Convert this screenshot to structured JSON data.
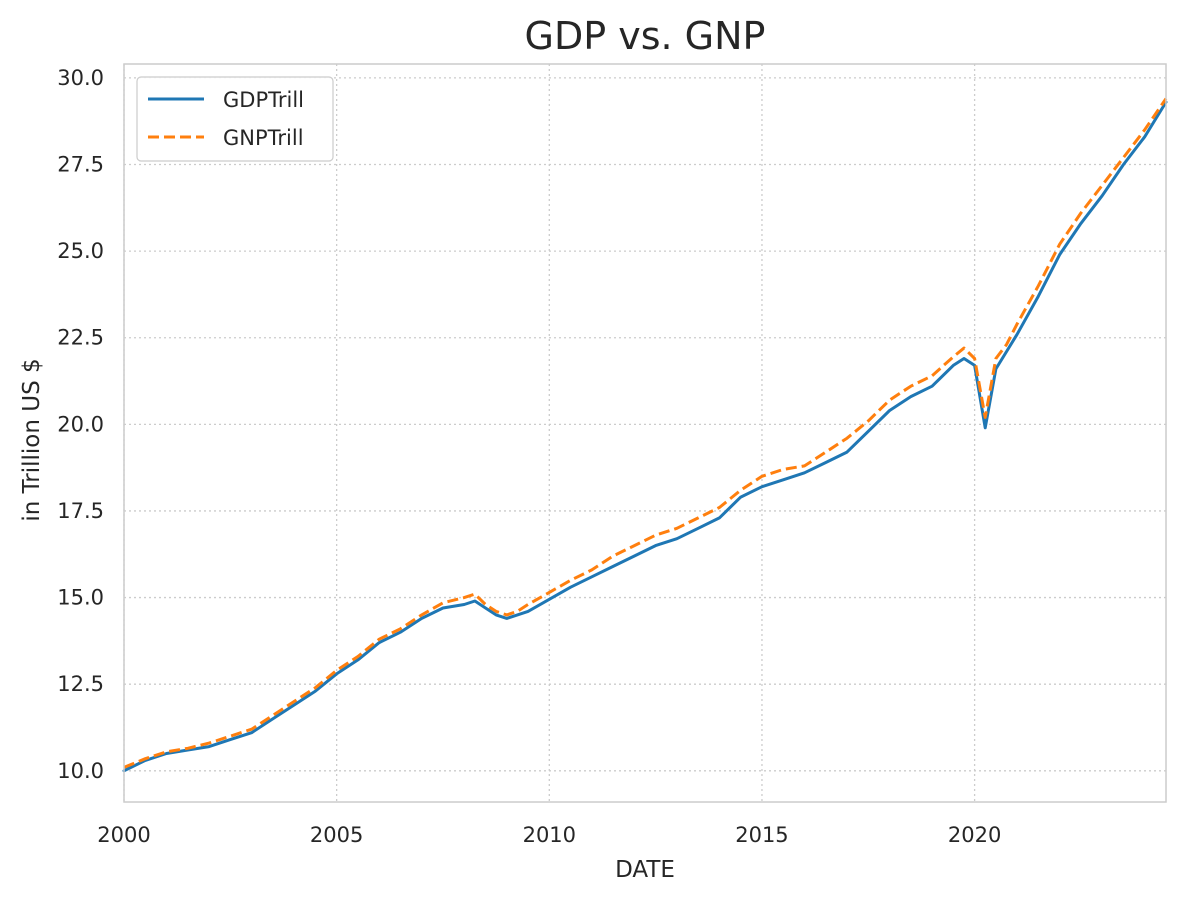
{
  "chart_data": {
    "type": "line",
    "title": "GDP vs. GNP",
    "xlabel": "DATE",
    "ylabel": "in Trillion US $",
    "xlim": [
      "2000-01-01",
      "2024-07-01"
    ],
    "ylim": [
      9.1,
      30.4
    ],
    "xticks": [
      "2000",
      "2005",
      "2010",
      "2015",
      "2020"
    ],
    "yticks": [
      "10.0",
      "12.5",
      "15.0",
      "17.5",
      "20.0",
      "22.5",
      "25.0",
      "27.5",
      "30.0"
    ],
    "grid": true,
    "legend": "top-left",
    "x": [
      "2000-01-01",
      "2000-07-01",
      "2001-01-01",
      "2001-07-01",
      "2002-01-01",
      "2002-07-01",
      "2003-01-01",
      "2003-07-01",
      "2004-01-01",
      "2004-07-01",
      "2005-01-01",
      "2005-07-01",
      "2006-01-01",
      "2006-07-01",
      "2007-01-01",
      "2007-07-01",
      "2008-01-01",
      "2008-04-01",
      "2008-07-01",
      "2008-10-01",
      "2009-01-01",
      "2009-04-01",
      "2009-07-01",
      "2010-01-01",
      "2010-07-01",
      "2011-01-01",
      "2011-07-01",
      "2012-01-01",
      "2012-07-01",
      "2013-01-01",
      "2013-07-01",
      "2014-01-01",
      "2014-07-01",
      "2015-01-01",
      "2015-07-01",
      "2016-01-01",
      "2016-07-01",
      "2017-01-01",
      "2017-07-01",
      "2018-01-01",
      "2018-07-01",
      "2019-01-01",
      "2019-07-01",
      "2019-10-01",
      "2020-01-01",
      "2020-04-01",
      "2020-07-01",
      "2020-10-01",
      "2021-01-01",
      "2021-07-01",
      "2022-01-01",
      "2022-07-01",
      "2023-01-01",
      "2023-07-01",
      "2024-01-01",
      "2024-07-01"
    ],
    "series": [
      {
        "name": "GDPTrill",
        "color": "#1f77b4",
        "style": "solid",
        "values": [
          10.0,
          10.3,
          10.5,
          10.6,
          10.7,
          10.9,
          11.1,
          11.5,
          11.9,
          12.3,
          12.8,
          13.2,
          13.7,
          14.0,
          14.4,
          14.7,
          14.8,
          14.9,
          14.7,
          14.5,
          14.4,
          14.5,
          14.6,
          14.95,
          15.3,
          15.6,
          15.9,
          16.2,
          16.5,
          16.7,
          17.0,
          17.3,
          17.9,
          18.2,
          18.4,
          18.6,
          18.9,
          19.2,
          19.8,
          20.4,
          20.8,
          21.1,
          21.7,
          21.9,
          21.7,
          19.9,
          21.6,
          22.1,
          22.6,
          23.7,
          24.9,
          25.8,
          26.6,
          27.5,
          28.3,
          29.3
        ]
      },
      {
        "name": "GNPTrill",
        "color": "#ff7f0e",
        "style": "dashed",
        "values": [
          10.1,
          10.35,
          10.55,
          10.65,
          10.8,
          11.0,
          11.2,
          11.6,
          12.0,
          12.4,
          12.9,
          13.3,
          13.8,
          14.1,
          14.5,
          14.85,
          15.0,
          15.1,
          14.8,
          14.6,
          14.5,
          14.6,
          14.8,
          15.15,
          15.5,
          15.8,
          16.2,
          16.5,
          16.8,
          17.0,
          17.3,
          17.6,
          18.1,
          18.5,
          18.7,
          18.8,
          19.2,
          19.6,
          20.1,
          20.7,
          21.1,
          21.4,
          21.95,
          22.2,
          21.9,
          20.2,
          21.9,
          22.3,
          22.9,
          24.0,
          25.2,
          26.1,
          26.9,
          27.7,
          28.5,
          29.4
        ]
      }
    ]
  }
}
